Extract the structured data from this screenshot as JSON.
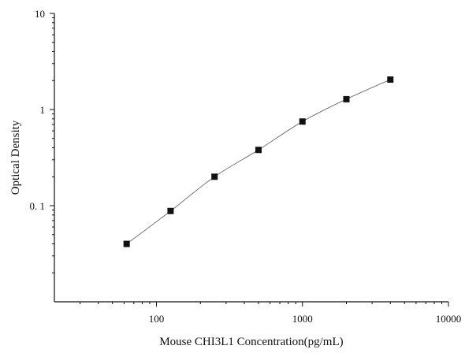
{
  "chart_data": {
    "type": "scatter",
    "xlabel": "Mouse CHI3L1 Concentration(pg/mL)",
    "ylabel": "Optical Density",
    "xscale": "log",
    "yscale": "log",
    "xlim": [
      20,
      10000
    ],
    "ylim": [
      0.01,
      10
    ],
    "x_ticks": [
      {
        "value": 100,
        "label": "100"
      },
      {
        "value": 1000,
        "label": "1000"
      },
      {
        "value": 10000,
        "label": "10000"
      }
    ],
    "y_ticks": [
      {
        "value": 0.1,
        "label": "0. 1"
      },
      {
        "value": 1,
        "label": "1"
      },
      {
        "value": 10,
        "label": "10"
      }
    ],
    "grid": false,
    "legend": "none",
    "marker": "square",
    "marker_color": "#111111",
    "curve_color": "#555555",
    "series": [
      {
        "x": [
          62.5,
          125,
          250,
          500,
          1000,
          2000,
          4000
        ],
        "y": [
          0.04,
          0.088,
          0.2,
          0.38,
          0.75,
          1.28,
          2.05
        ]
      }
    ]
  }
}
